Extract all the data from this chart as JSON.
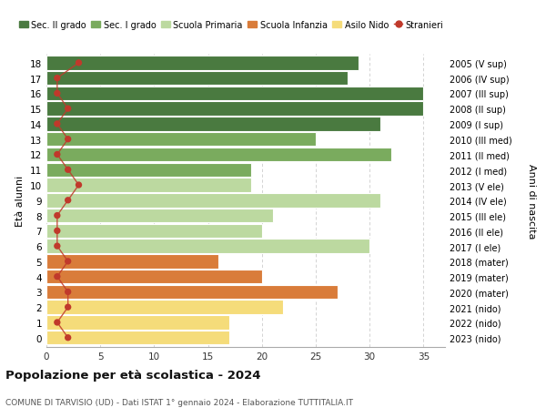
{
  "ages": [
    18,
    17,
    16,
    15,
    14,
    13,
    12,
    11,
    10,
    9,
    8,
    7,
    6,
    5,
    4,
    3,
    2,
    1,
    0
  ],
  "right_labels": [
    "2005 (V sup)",
    "2006 (IV sup)",
    "2007 (III sup)",
    "2008 (II sup)",
    "2009 (I sup)",
    "2010 (III med)",
    "2011 (II med)",
    "2012 (I med)",
    "2013 (V ele)",
    "2014 (IV ele)",
    "2015 (III ele)",
    "2016 (II ele)",
    "2017 (I ele)",
    "2018 (mater)",
    "2019 (mater)",
    "2020 (mater)",
    "2021 (nido)",
    "2022 (nido)",
    "2023 (nido)"
  ],
  "bar_values": [
    29,
    28,
    35,
    35,
    31,
    25,
    32,
    19,
    19,
    31,
    21,
    20,
    30,
    16,
    20,
    27,
    22,
    17,
    17
  ],
  "bar_colors": [
    "#4a7a40",
    "#4a7a40",
    "#4a7a40",
    "#4a7a40",
    "#4a7a40",
    "#7aab5e",
    "#7aab5e",
    "#7aab5e",
    "#bcd9a0",
    "#bcd9a0",
    "#bcd9a0",
    "#bcd9a0",
    "#bcd9a0",
    "#d97c3a",
    "#d97c3a",
    "#d97c3a",
    "#f5dc7a",
    "#f5dc7a",
    "#f5dc7a"
  ],
  "stranieri_values": [
    3,
    1,
    1,
    2,
    1,
    2,
    1,
    2,
    3,
    2,
    1,
    1,
    1,
    2,
    1,
    2,
    2,
    1,
    2
  ],
  "legend_labels": [
    "Sec. II grado",
    "Sec. I grado",
    "Scuola Primaria",
    "Scuola Infanzia",
    "Asilo Nido",
    "Stranieri"
  ],
  "legend_colors": [
    "#4a7a40",
    "#7aab5e",
    "#bcd9a0",
    "#d97c3a",
    "#f5dc7a",
    "#c0392b"
  ],
  "title": "Popolazione per età scolastica - 2024",
  "subtitle": "COMUNE DI TARVISIO (UD) - Dati ISTAT 1° gennaio 2024 - Elaborazione TUTTITALIA.IT",
  "ylabel": "Età alunni",
  "right_ylabel": "Anni di nascita",
  "xlim": [
    0,
    37
  ],
  "xticks": [
    0,
    5,
    10,
    15,
    20,
    25,
    30,
    35
  ],
  "bg_color": "#ffffff",
  "stranieri_color": "#c0392b",
  "grid_color": "#cccccc"
}
